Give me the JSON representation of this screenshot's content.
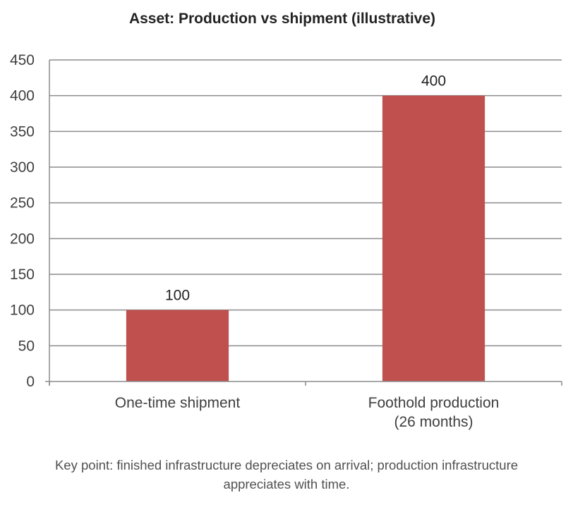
{
  "chart_data": {
    "type": "bar",
    "title": "Asset: Production vs shipment (illustrative)",
    "categories": [
      [
        "One-time shipment"
      ],
      [
        "Foothold production",
        "(26 months)"
      ]
    ],
    "values": [
      100,
      400
    ],
    "data_labels": [
      "100",
      "400"
    ],
    "ylim": [
      0,
      450
    ],
    "y_ticks": [
      0,
      50,
      100,
      150,
      200,
      250,
      300,
      350,
      400,
      450
    ],
    "grid": true,
    "xlabel": "",
    "ylabel": "",
    "bar_color": "#c0504d",
    "grid_color": "#8c8c8c"
  },
  "footnote": {
    "line1": "Key point: finished infrastructure depreciates on arrival; production infrastructure",
    "line2": "appreciates with time."
  }
}
